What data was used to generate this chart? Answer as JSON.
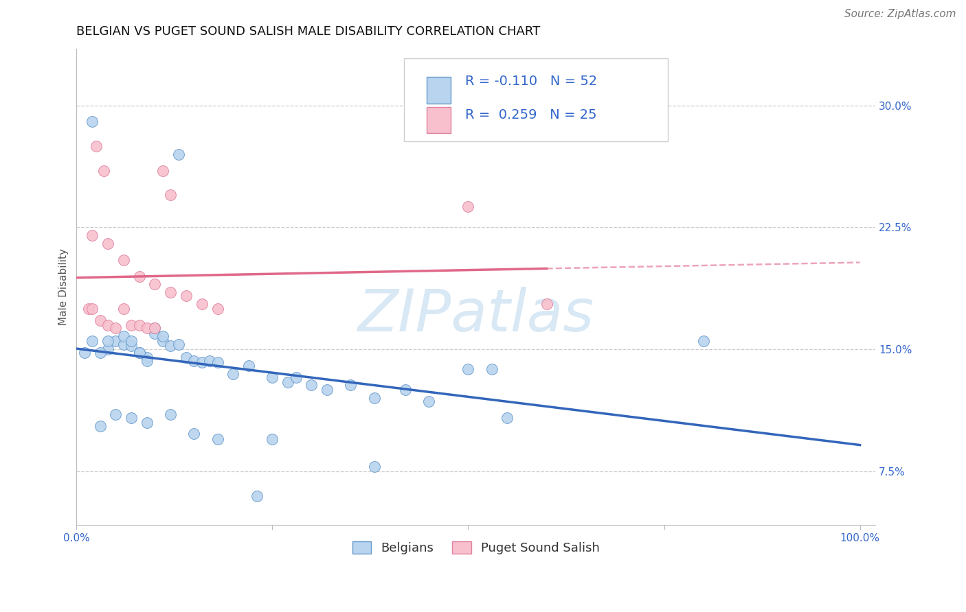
{
  "title": "BELGIAN VS PUGET SOUND SALISH MALE DISABILITY CORRELATION CHART",
  "source": "Source: ZipAtlas.com",
  "ylabel": "Male Disability",
  "xlim": [
    0.0,
    1.02
  ],
  "ylim": [
    0.042,
    0.335
  ],
  "xtick_positions": [
    0.0,
    0.25,
    0.5,
    0.75,
    1.0
  ],
  "xtick_labels": [
    "0.0%",
    "",
    "",
    "",
    "100.0%"
  ],
  "ytick_positions": [
    0.075,
    0.15,
    0.225,
    0.3
  ],
  "ytick_labels": [
    "7.5%",
    "15.0%",
    "22.5%",
    "30.0%"
  ],
  "belgian_R": -0.11,
  "belgian_N": 52,
  "salish_R": 0.259,
  "salish_N": 25,
  "belgian_color": "#b8d4ee",
  "belgian_edge_color": "#6699cc",
  "belgian_line_color": "#3366bb",
  "salish_color": "#f8c0cc",
  "salish_edge_color": "#e080a0",
  "salish_line_color": "#e06888",
  "label_color": "#3366cc",
  "background_color": "#ffffff",
  "grid_color": "#cccccc",
  "title_fontsize": 13,
  "axis_label_fontsize": 11,
  "tick_fontsize": 11,
  "legend_fontsize": 13,
  "source_fontsize": 11,
  "watermark": "ZIPatlas",
  "watermark_color": "#d8e8f4",
  "info_box_text_color": "#3366cc",
  "belgian_x": [
    0.02,
    0.13,
    0.02,
    0.04,
    0.01,
    0.03,
    0.05,
    0.06,
    0.07,
    0.08,
    0.09,
    0.1,
    0.11,
    0.12,
    0.04,
    0.06,
    0.07,
    0.08,
    0.09,
    0.1,
    0.11,
    0.13,
    0.14,
    0.15,
    0.16,
    0.17,
    0.18,
    0.2,
    0.22,
    0.25,
    0.27,
    0.28,
    0.3,
    0.32,
    0.35,
    0.38,
    0.42,
    0.45,
    0.5,
    0.53,
    0.03,
    0.05,
    0.07,
    0.09,
    0.12,
    0.15,
    0.18,
    0.25,
    0.38,
    0.55,
    0.8,
    0.23
  ],
  "belgian_y": [
    0.29,
    0.27,
    0.155,
    0.15,
    0.148,
    0.148,
    0.155,
    0.153,
    0.152,
    0.148,
    0.145,
    0.16,
    0.155,
    0.152,
    0.155,
    0.158,
    0.155,
    0.148,
    0.143,
    0.163,
    0.158,
    0.153,
    0.145,
    0.143,
    0.142,
    0.143,
    0.142,
    0.135,
    0.14,
    0.133,
    0.13,
    0.133,
    0.128,
    0.125,
    0.128,
    0.12,
    0.125,
    0.118,
    0.138,
    0.138,
    0.103,
    0.11,
    0.108,
    0.105,
    0.11,
    0.098,
    0.095,
    0.095,
    0.078,
    0.108,
    0.155,
    0.06
  ],
  "salish_x": [
    0.015,
    0.02,
    0.03,
    0.04,
    0.05,
    0.06,
    0.07,
    0.08,
    0.09,
    0.1,
    0.11,
    0.12,
    0.02,
    0.04,
    0.06,
    0.08,
    0.1,
    0.12,
    0.14,
    0.16,
    0.18,
    0.5,
    0.6,
    0.025,
    0.035
  ],
  "salish_y": [
    0.175,
    0.175,
    0.168,
    0.165,
    0.163,
    0.175,
    0.165,
    0.165,
    0.163,
    0.163,
    0.26,
    0.245,
    0.22,
    0.215,
    0.205,
    0.195,
    0.19,
    0.185,
    0.183,
    0.178,
    0.175,
    0.238,
    0.178,
    0.275,
    0.26
  ]
}
